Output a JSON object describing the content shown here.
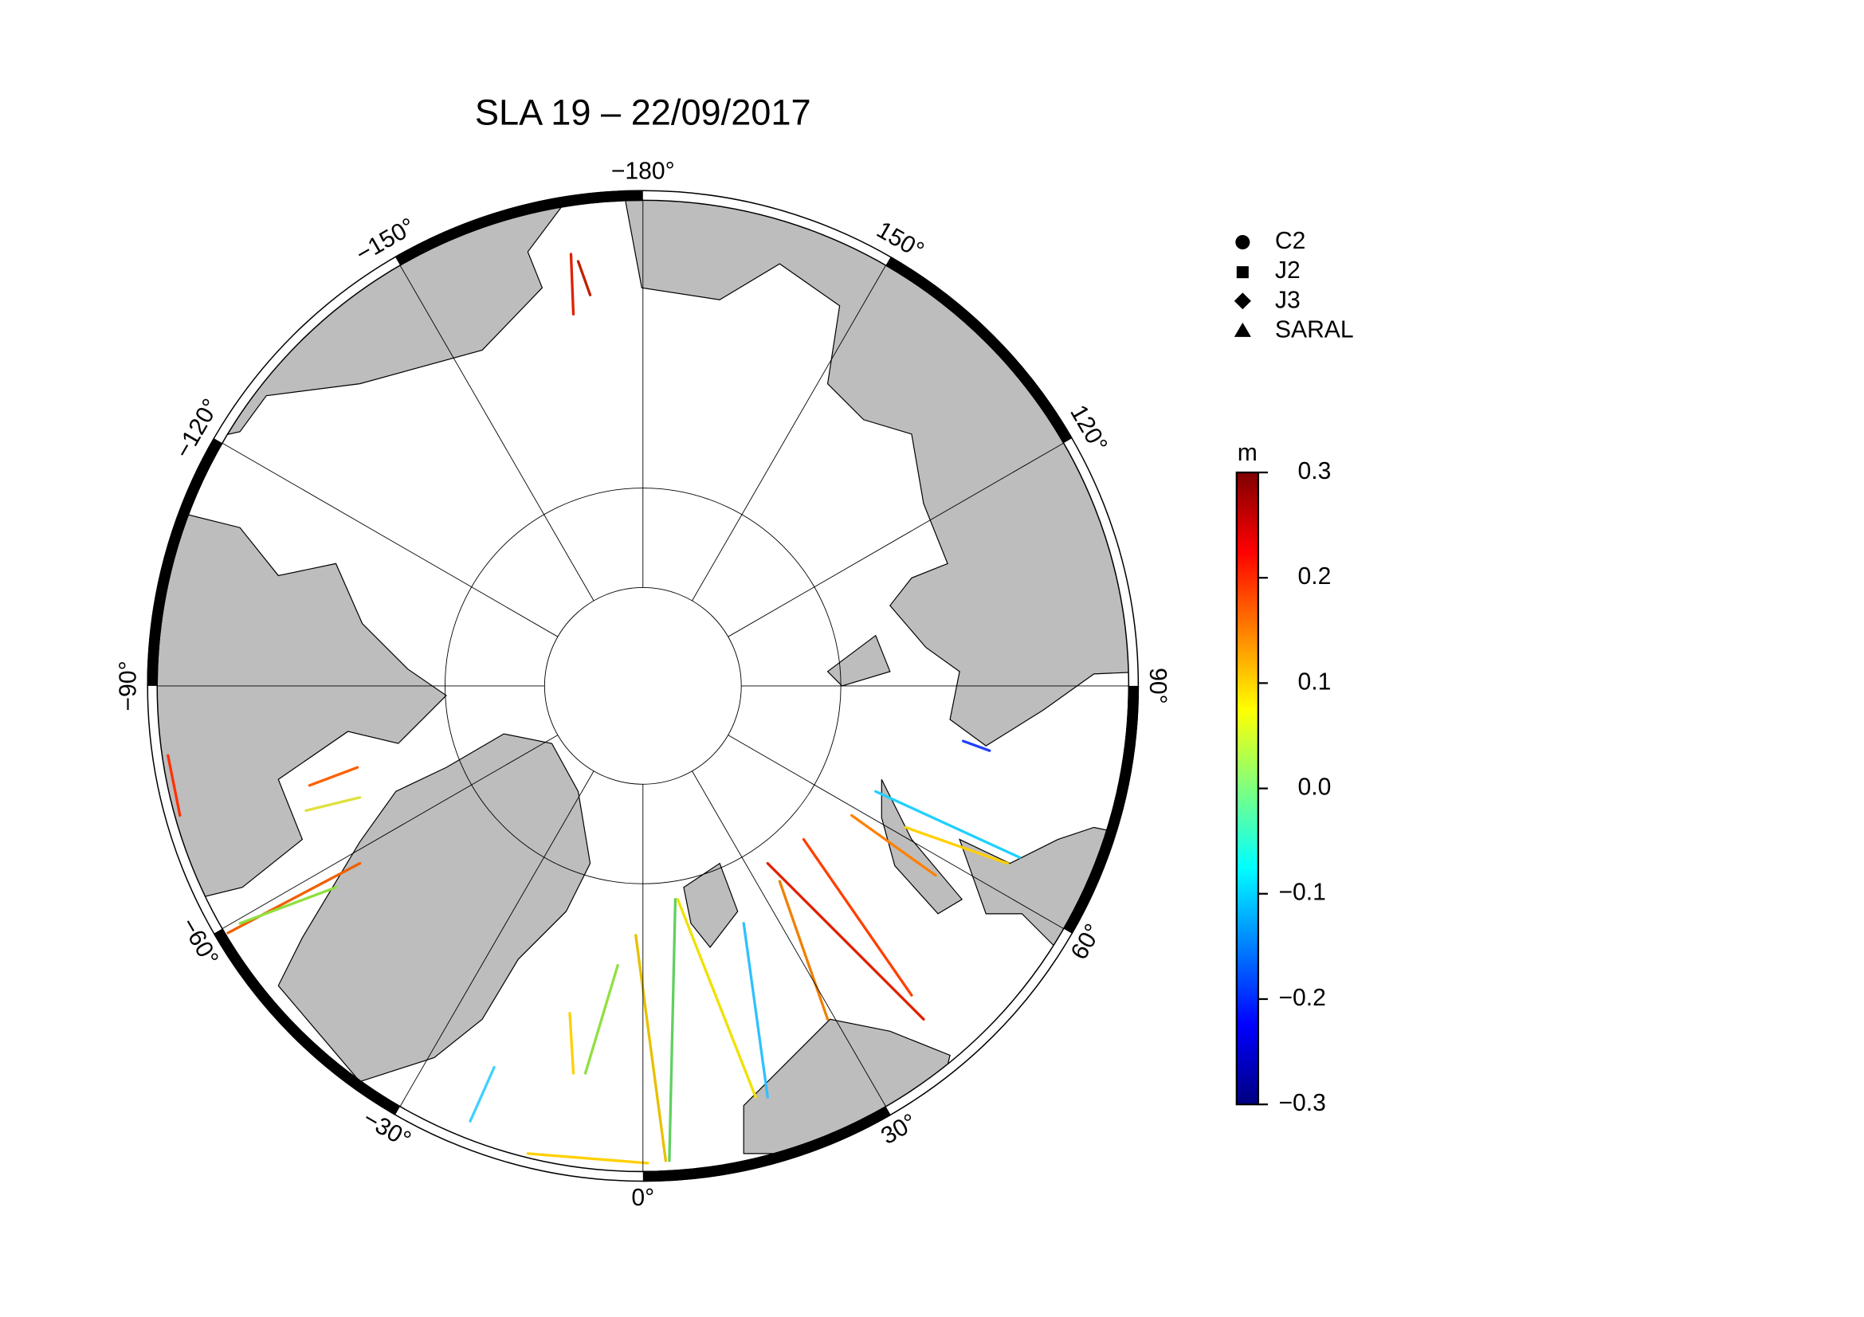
{
  "title": "SLA 19 – 22/09/2017",
  "meridians": [
    {
      "value": -180,
      "label": "−180°"
    },
    {
      "value": -150,
      "label": "−150°"
    },
    {
      "value": -120,
      "label": "−120°"
    },
    {
      "value": -90,
      "label": "−90°"
    },
    {
      "value": -60,
      "label": "−60°"
    },
    {
      "value": -30,
      "label": "−30°"
    },
    {
      "value": 0,
      "label": "0°"
    },
    {
      "value": 30,
      "label": "30°"
    },
    {
      "value": 60,
      "label": "60°"
    },
    {
      "value": 90,
      "label": "90°"
    },
    {
      "value": 120,
      "label": "120°"
    },
    {
      "value": 150,
      "label": "150°"
    }
  ],
  "legend": [
    "C2",
    "J2",
    "J3",
    "SARAL"
  ],
  "colorbar": {
    "unit": "m",
    "lim": [
      -0.3,
      0.3
    ],
    "ticks": [
      0.3,
      0.2,
      0.1,
      {
        "value": 0,
        "label": "0.0"
      },
      {
        "value": -0.1,
        "label": "−0.1"
      },
      {
        "value": -0.2,
        "label": "−0.2"
      },
      {
        "value": -0.3,
        "label": "−0.3"
      }
    ]
  }
}
